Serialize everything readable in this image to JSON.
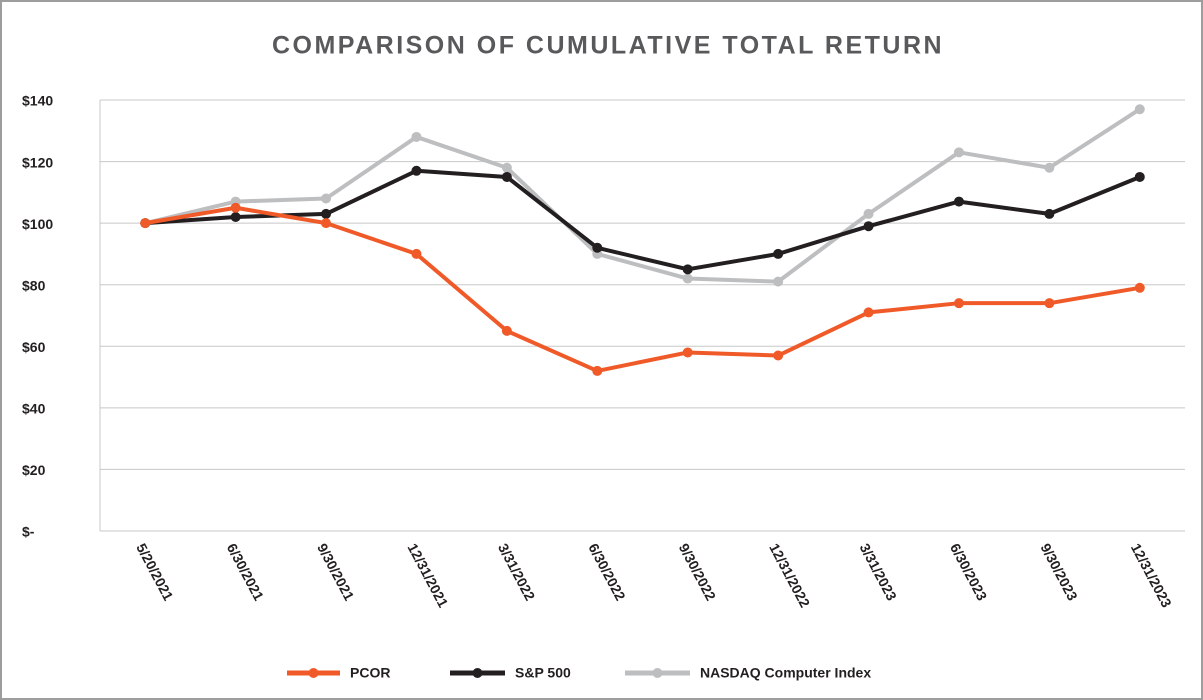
{
  "chart_data": {
    "type": "line",
    "title": "COMPARISON OF CUMULATIVE TOTAL RETURN",
    "categories": [
      "5/20/2021",
      "6/30/2021",
      "9/30/2021",
      "12/31/2021",
      "3/31/2022",
      "6/30/2022",
      "9/30/2022",
      "12/31/2022",
      "3/31/2023",
      "6/30/2023",
      "9/30/2023",
      "12/31/2023"
    ],
    "series": [
      {
        "name": "PCOR",
        "color": "#f05a28",
        "values": [
          100,
          105,
          100,
          90,
          65,
          52,
          58,
          57,
          71,
          74,
          74,
          79
        ]
      },
      {
        "name": "S&P 500",
        "color": "#231f20",
        "values": [
          100,
          102,
          103,
          117,
          115,
          92,
          85,
          90,
          99,
          107,
          103,
          115
        ]
      },
      {
        "name": "NASDAQ Computer Index",
        "color": "#bcbec0",
        "values": [
          100,
          107,
          108,
          128,
          118,
          90,
          82,
          81,
          103,
          123,
          118,
          137
        ]
      }
    ],
    "ylim": [
      0,
      140
    ],
    "yticks": [
      {
        "value": 0,
        "label": "$-"
      },
      {
        "value": 20,
        "label": "$20"
      },
      {
        "value": 40,
        "label": "$40"
      },
      {
        "value": 60,
        "label": "$60"
      },
      {
        "value": 80,
        "label": "$80"
      },
      {
        "value": 100,
        "label": "$100"
      },
      {
        "value": 120,
        "label": "$120"
      },
      {
        "value": 140,
        "label": "$140"
      }
    ],
    "grid": true,
    "legend": "bottom"
  }
}
